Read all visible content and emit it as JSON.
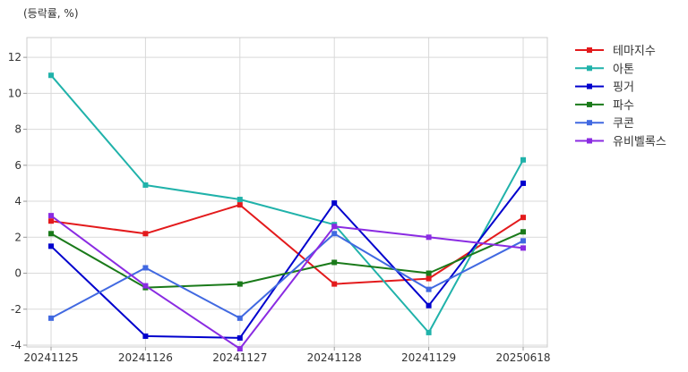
{
  "chart_data": {
    "type": "line",
    "unit_label": "(등락률, %)",
    "categories": [
      "20241125",
      "20241126",
      "20241127",
      "20241128",
      "20241129",
      "20250618"
    ],
    "ylim": [
      -4.1,
      13.1
    ],
    "yticks": [
      -4,
      -2,
      0,
      2,
      4,
      6,
      8,
      10,
      12
    ],
    "grid": true,
    "legend_position": "top-right-outside",
    "series": [
      {
        "name": "테마지수",
        "color": "#e31a1c",
        "values": [
          2.9,
          2.2,
          3.8,
          -0.6,
          -0.3,
          3.1
        ]
      },
      {
        "name": "아톤",
        "color": "#20b2aa",
        "values": [
          11.0,
          4.9,
          4.1,
          2.7,
          -3.3,
          6.3
        ]
      },
      {
        "name": "핑거",
        "color": "#0000cd",
        "values": [
          1.5,
          -3.5,
          -3.6,
          3.9,
          -1.8,
          5.0
        ]
      },
      {
        "name": "파수",
        "color": "#1a7a1a",
        "values": [
          2.2,
          -0.8,
          -0.6,
          0.6,
          0.0,
          2.3
        ]
      },
      {
        "name": "쿠콘",
        "color": "#4169e1",
        "values": [
          -2.5,
          0.3,
          -2.5,
          2.2,
          -0.9,
          1.8
        ]
      },
      {
        "name": "유비벨록스",
        "color": "#8a2be2",
        "values": [
          3.2,
          -0.7,
          -4.2,
          2.6,
          2.0,
          1.4
        ]
      }
    ]
  }
}
